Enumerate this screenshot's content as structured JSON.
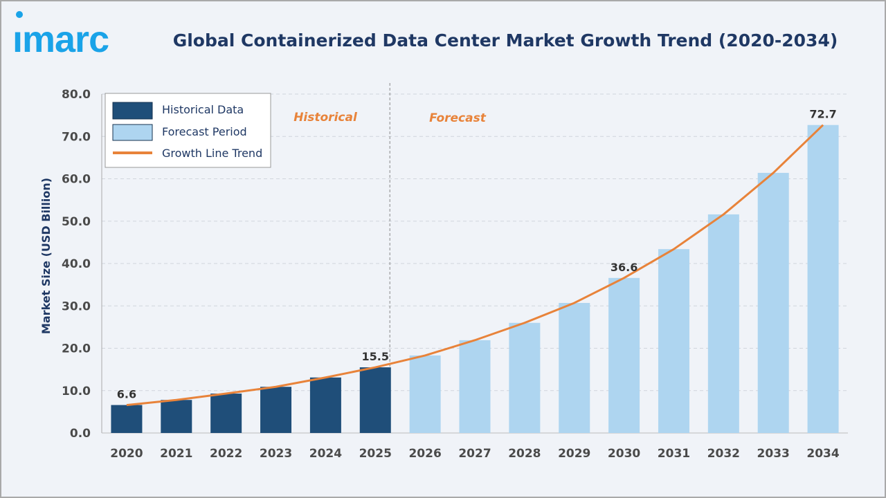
{
  "logo": {
    "text": "imarc",
    "color": "#1aa3e8"
  },
  "chart_data": {
    "type": "bar",
    "title": "Global Containerized Data Center Market Growth Trend (2020-2034)",
    "ylabel": "Market Size (USD Billion)",
    "xlabel": "",
    "ylim": [
      0,
      80
    ],
    "yticks": [
      "0.0",
      "10.0",
      "20.0",
      "30.0",
      "40.0",
      "50.0",
      "60.0",
      "70.0",
      "80.0"
    ],
    "grid": true,
    "categories": [
      "2020",
      "2021",
      "2022",
      "2023",
      "2024",
      "2025",
      "2026",
      "2027",
      "2028",
      "2029",
      "2030",
      "2031",
      "2032",
      "2033",
      "2034"
    ],
    "values": [
      6.6,
      7.8,
      9.3,
      10.9,
      13.1,
      15.5,
      18.3,
      21.9,
      26.0,
      30.7,
      36.6,
      43.4,
      51.6,
      61.4,
      72.7
    ],
    "historical_count": 6,
    "data_labels": {
      "2020": "6.6",
      "2025": "15.5",
      "2030": "36.6",
      "2034": "72.7"
    },
    "region_labels": {
      "historical": "Historical",
      "forecast": "Forecast"
    },
    "legend": {
      "placement": "top-left",
      "items": [
        {
          "label": "Historical Data",
          "color": "#1f4e79"
        },
        {
          "label": "Forecast Period",
          "color": "#aed5f0"
        },
        {
          "label": "Growth Line Trend",
          "color": "#e8833a"
        }
      ]
    },
    "colors": {
      "historical": "#1f4e79",
      "forecast": "#aed5f0",
      "trend": "#e8833a",
      "title": "#1f3864",
      "tick": "#4a4a4a"
    }
  }
}
